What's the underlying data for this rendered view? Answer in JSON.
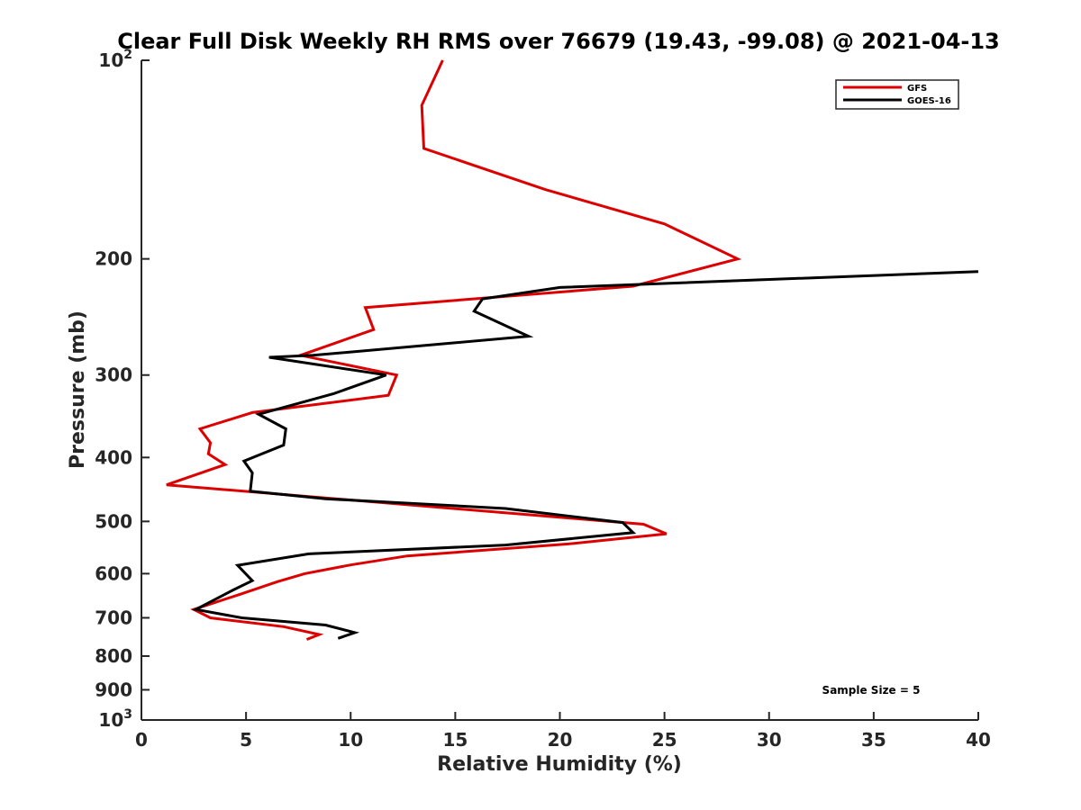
{
  "chart_data": {
    "type": "line",
    "title": "Clear Full Disk Weekly RH RMS over 76679 (19.43, -99.08) @ 2021-04-13",
    "xlabel": "Relative Humidity (%)",
    "ylabel": "Pressure (mb)",
    "xlim": [
      0,
      40
    ],
    "ylim": [
      100,
      1000
    ],
    "y_scale": "log",
    "y_reversed": true,
    "x_ticks": [
      0,
      5,
      10,
      15,
      20,
      25,
      30,
      35,
      40
    ],
    "y_ticks": [
      {
        "value": 100,
        "label": "10",
        "sup": "2"
      },
      {
        "value": 200,
        "label": "200"
      },
      {
        "value": 300,
        "label": "300"
      },
      {
        "value": 400,
        "label": "400"
      },
      {
        "value": 500,
        "label": "500"
      },
      {
        "value": 600,
        "label": "600"
      },
      {
        "value": 700,
        "label": "700"
      },
      {
        "value": 800,
        "label": "800"
      },
      {
        "value": 900,
        "label": "900"
      },
      {
        "value": 1000,
        "label": "10",
        "sup": "3"
      }
    ],
    "grid": false,
    "legend_position": "top-right",
    "annotation": "Sample Size = 5",
    "series": [
      {
        "name": "GFS",
        "color": "#dd0000",
        "points": [
          [
            14.4,
            100
          ],
          [
            13.4,
            117
          ],
          [
            13.5,
            136
          ],
          [
            19.3,
            157
          ],
          [
            25.0,
            177
          ],
          [
            28.5,
            200
          ],
          [
            23.5,
            220
          ],
          [
            10.7,
            237
          ],
          [
            11.1,
            256
          ],
          [
            7.6,
            280
          ],
          [
            12.2,
            300
          ],
          [
            11.8,
            322
          ],
          [
            5.3,
            342
          ],
          [
            2.8,
            362
          ],
          [
            3.3,
            380
          ],
          [
            3.2,
            395
          ],
          [
            4.0,
            410
          ],
          [
            1.2,
            440
          ],
          [
            24.0,
            505
          ],
          [
            25.1,
            522
          ],
          [
            20.4,
            541
          ],
          [
            12.7,
            564
          ],
          [
            10.0,
            582
          ],
          [
            7.8,
            600
          ],
          [
            6.5,
            617
          ],
          [
            4.7,
            645
          ],
          [
            2.5,
            680
          ],
          [
            3.3,
            700
          ],
          [
            6.8,
            722
          ],
          [
            8.5,
            742
          ],
          [
            7.9,
            755
          ]
        ]
      },
      {
        "name": "GOES-16",
        "color": "#000000",
        "points": [
          [
            40.0,
            209
          ],
          [
            20.0,
            221
          ],
          [
            16.3,
            230
          ],
          [
            15.9,
            240
          ],
          [
            18.5,
            262
          ],
          [
            8.2,
            280
          ],
          [
            6.1,
            282
          ],
          [
            11.7,
            300
          ],
          [
            9.2,
            320
          ],
          [
            5.6,
            344
          ],
          [
            6.9,
            362
          ],
          [
            6.8,
            383
          ],
          [
            4.9,
            405
          ],
          [
            5.3,
            422
          ],
          [
            5.2,
            450
          ],
          [
            8.8,
            462
          ],
          [
            17.4,
            478
          ],
          [
            23.0,
            502
          ],
          [
            23.5,
            520
          ],
          [
            17.4,
            543
          ],
          [
            8.0,
            560
          ],
          [
            4.6,
            583
          ],
          [
            5.3,
            615
          ],
          [
            4.4,
            635
          ],
          [
            2.6,
            680
          ],
          [
            4.8,
            700
          ],
          [
            8.8,
            718
          ],
          [
            10.2,
            737
          ],
          [
            9.4,
            752
          ]
        ]
      }
    ]
  }
}
